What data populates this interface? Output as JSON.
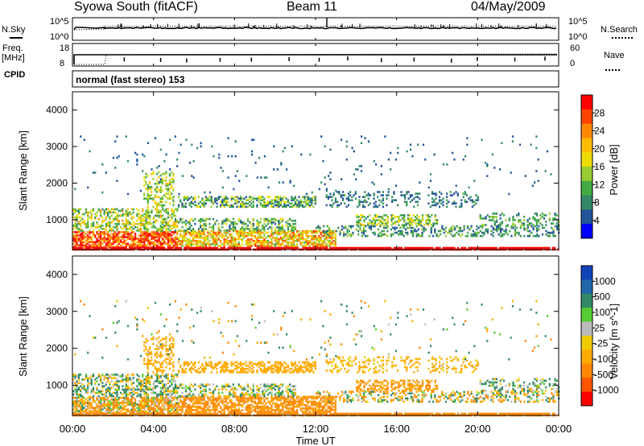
{
  "header": {
    "station": "Syowa South (fitACF)",
    "beam": "Beam 11",
    "date": "04/May/2009"
  },
  "status_panels": {
    "nsky_label": "N.Sky",
    "nsearch_label": "N.Search",
    "freq_label_top": "Freq.",
    "freq_label_unit": "[MHz]",
    "nave_label": "Nave",
    "cpid_label": "CPID",
    "cpid_value": "normal (fast stereo) 153",
    "noise_ticks_left": [
      "10^5",
      "10^0"
    ],
    "noise_ticks_right": [
      "10^5",
      "10^0"
    ],
    "freq_ticks_left": [
      "18",
      "8"
    ],
    "freq_ticks_right": [
      "60",
      "0"
    ]
  },
  "chart_data": [
    {
      "type": "heatmap",
      "name": "power",
      "ylabel": "Slant Range [km]",
      "y_ticks": [
        "4000",
        "3000",
        "2000",
        "1000"
      ],
      "ylim": [
        180,
        4500
      ],
      "colorbar": {
        "label": "Power [dB]",
        "ticks": [
          "28",
          "24",
          "20",
          "16",
          "12",
          "8",
          "4"
        ],
        "colors": [
          "#ff0000",
          "#ff4400",
          "#ff8800",
          "#ffbb00",
          "#eedd00",
          "#99cc33",
          "#44aa44",
          "#338866",
          "#225599",
          "#0000ff"
        ]
      }
    },
    {
      "type": "heatmap",
      "name": "velocity",
      "ylabel": "Slant Range [km]",
      "y_ticks": [
        "4000",
        "3000",
        "2000",
        "1000"
      ],
      "ylim": [
        180,
        4500
      ],
      "colorbar": {
        "label": "Velocity [m s^-1]",
        "ticks": [
          "1000",
          "500",
          "100",
          "25",
          "-25",
          "-100",
          "-500",
          "-1000"
        ],
        "colors": [
          "#1144bb",
          "#2266aa",
          "#338866",
          "#55cc33",
          "#bbbbbb",
          "#eecc00",
          "#ffaa00",
          "#ff8800",
          "#ff5500",
          "#ff0000"
        ]
      }
    }
  ],
  "x_axis": {
    "label": "Time UT",
    "ticks": [
      "00:00",
      "04:00",
      "08:00",
      "12:00",
      "16:00",
      "20:00",
      "00:00"
    ]
  }
}
